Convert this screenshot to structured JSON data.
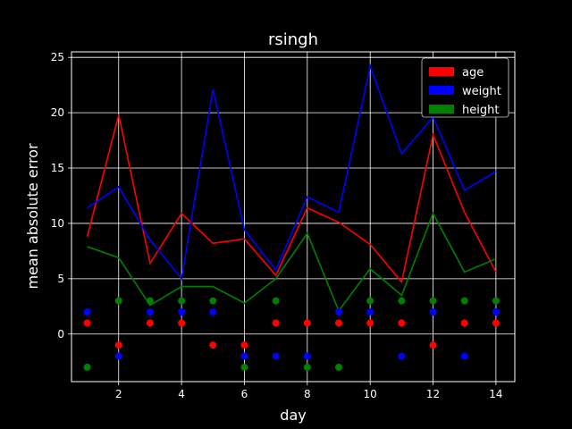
{
  "chart_data": {
    "type": "line",
    "title": "rsingh",
    "xlabel": "day",
    "ylabel": "mean absolute error",
    "x": [
      1,
      2,
      3,
      4,
      5,
      6,
      7,
      8,
      9,
      10,
      11,
      12,
      13,
      14
    ],
    "xlim": [
      0.5,
      14.6
    ],
    "ylim": [
      -4.3,
      25.5
    ],
    "xticks": [
      2,
      4,
      6,
      8,
      10,
      12,
      14
    ],
    "yticks": [
      0,
      5,
      10,
      15,
      20,
      25
    ],
    "grid": true,
    "legend_position": "top-right",
    "series": [
      {
        "name": "age",
        "color": "#ff0000",
        "values": [
          8.8,
          19.8,
          6.4,
          10.9,
          8.2,
          8.6,
          5.3,
          11.4,
          10.1,
          8.1,
          4.7,
          18.0,
          11.0,
          5.6
        ],
        "points": [
          1,
          -1,
          1,
          1,
          -1,
          -1,
          1,
          1,
          1,
          1,
          1,
          -1,
          1,
          1
        ]
      },
      {
        "name": "weight",
        "color": "#0000ff",
        "values": [
          11.4,
          13.3,
          8.5,
          5.0,
          22.1,
          9.4,
          5.8,
          12.4,
          11.0,
          24.2,
          16.3,
          19.6,
          13.0,
          14.7
        ],
        "points": [
          2,
          -2,
          2,
          2,
          2,
          -2,
          -2,
          -2,
          2,
          2,
          -2,
          2,
          -2,
          2
        ]
      },
      {
        "name": "height",
        "color": "#008000",
        "values": [
          7.9,
          6.9,
          2.6,
          4.3,
          4.3,
          2.8,
          5.0,
          9.1,
          2.1,
          5.9,
          3.5,
          10.9,
          5.6,
          6.8
        ],
        "points": [
          -3,
          3,
          3,
          3,
          3,
          -3,
          3,
          -3,
          -3,
          3,
          3,
          3,
          3,
          3
        ]
      }
    ]
  }
}
